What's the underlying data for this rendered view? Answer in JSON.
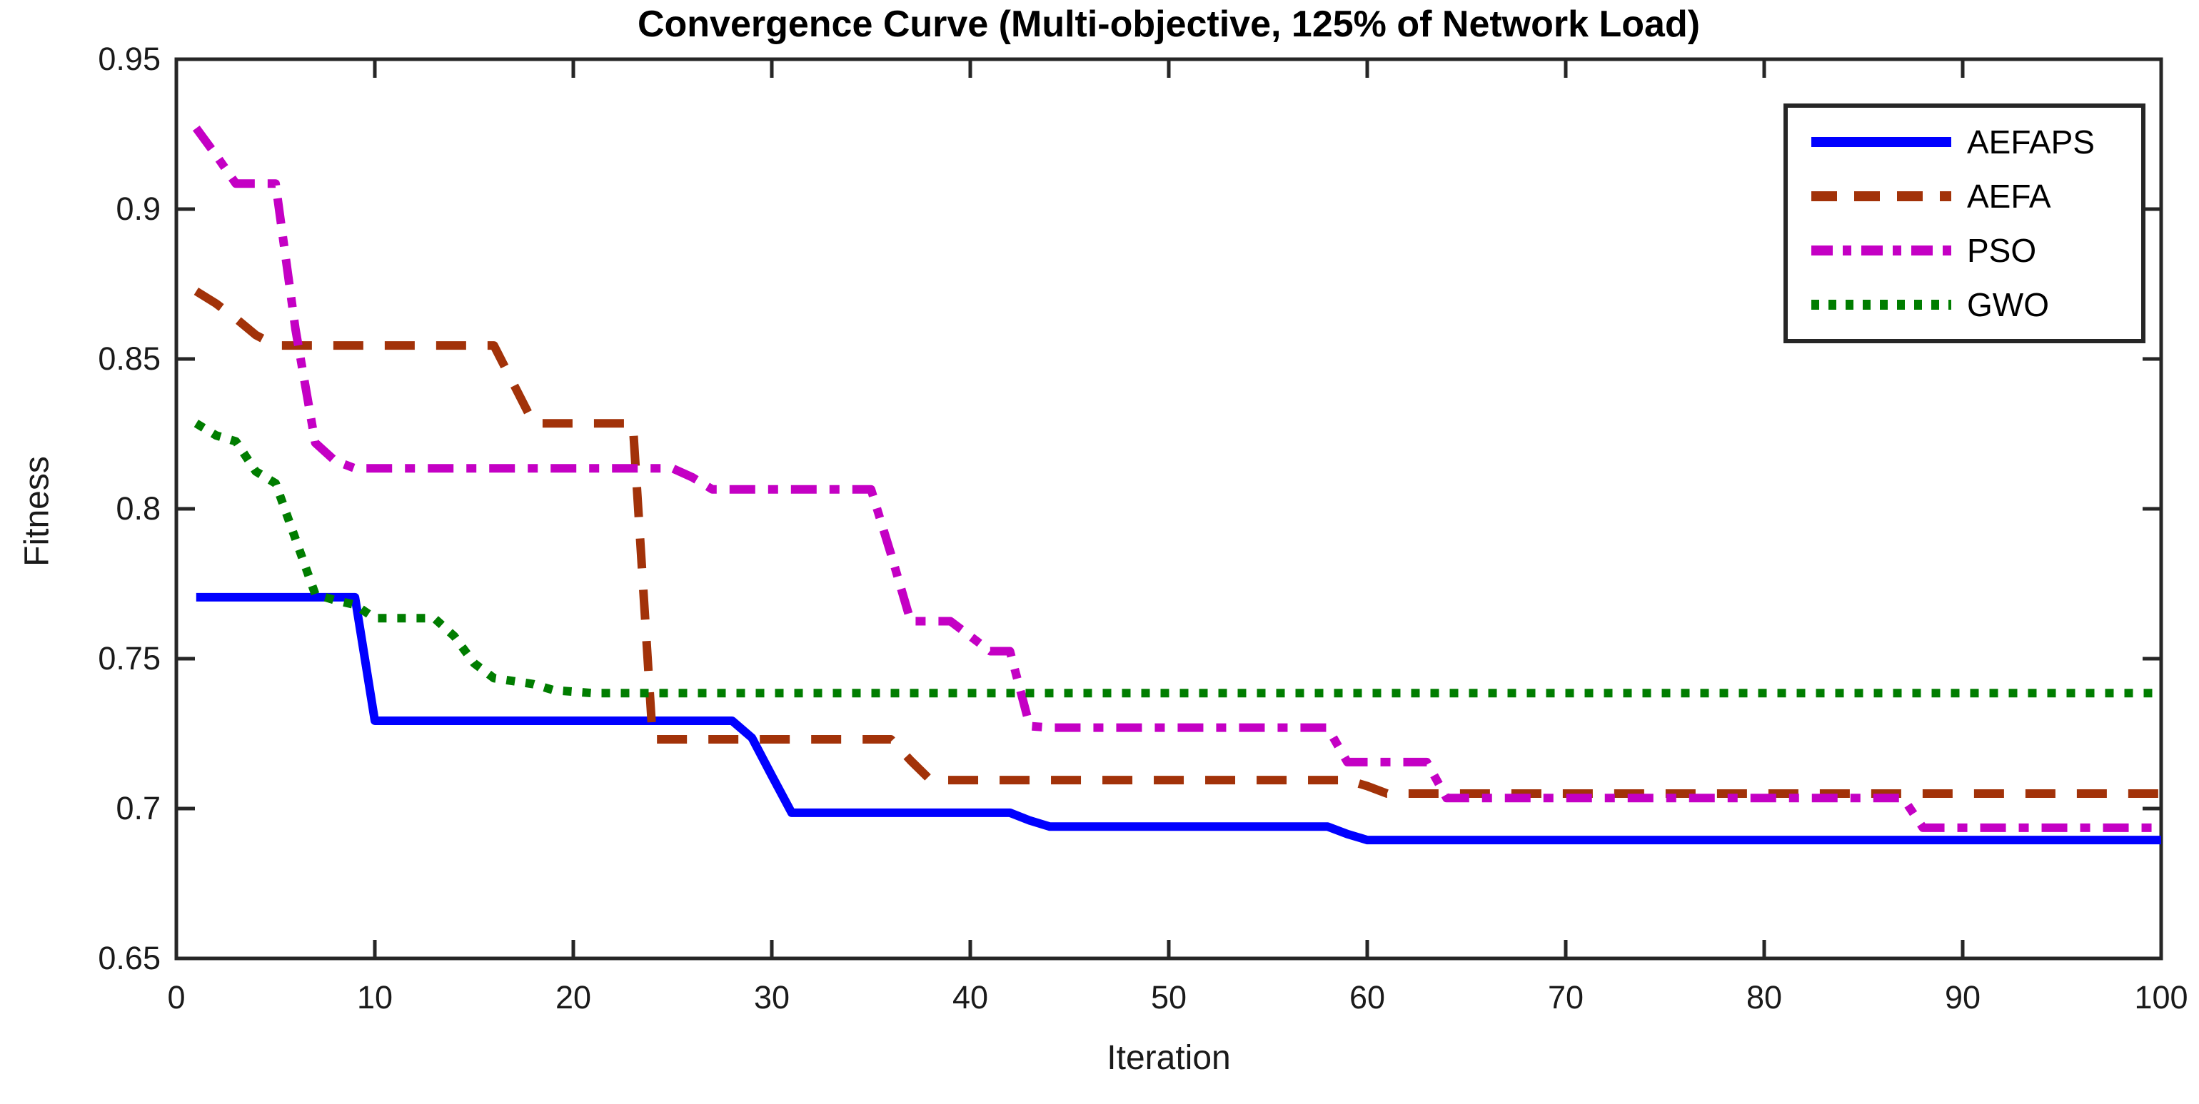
{
  "chart_data": {
    "type": "line",
    "title": "Convergence Curve (Multi-objective, 125% of Network Load)",
    "xlabel": "Iteration",
    "ylabel": "Fitness",
    "xlim": [
      0,
      100
    ],
    "ylim": [
      0.65,
      0.95
    ],
    "x_ticks": [
      0,
      10,
      20,
      30,
      40,
      50,
      60,
      70,
      80,
      90,
      100
    ],
    "x_tick_labels": [
      "0",
      "10",
      "20",
      "30",
      "40",
      "50",
      "60",
      "70",
      "80",
      "90",
      "100"
    ],
    "y_ticks": [
      0.65,
      0.7,
      0.75,
      0.8,
      0.85,
      0.9,
      0.95
    ],
    "y_tick_labels": [
      "0.65",
      "0.7",
      "0.75",
      "0.8",
      "0.85",
      "0.9",
      "0.95"
    ],
    "grid": false,
    "legend_position": "northeast",
    "axis_color": "#262626",
    "background_color": "#FFFFFF",
    "x_start": 1,
    "x_step": 1,
    "series": [
      {
        "name": "AEFAPS",
        "color": "#0000FF",
        "style": "solid",
        "values": [
          0.7705,
          0.7705,
          0.7705,
          0.7705,
          0.7705,
          0.7705,
          0.7705,
          0.7705,
          0.7705,
          0.7293,
          0.7293,
          0.7293,
          0.7293,
          0.7293,
          0.7293,
          0.7293,
          0.7293,
          0.7293,
          0.7293,
          0.7293,
          0.7293,
          0.7293,
          0.7293,
          0.7293,
          0.7293,
          0.7293,
          0.7293,
          0.7293,
          0.7236,
          0.711,
          0.6986,
          0.6986,
          0.6986,
          0.6986,
          0.6986,
          0.6986,
          0.6986,
          0.6986,
          0.6986,
          0.6986,
          0.6986,
          0.6986,
          0.696,
          0.694,
          0.694,
          0.694,
          0.694,
          0.694,
          0.694,
          0.694,
          0.694,
          0.694,
          0.694,
          0.694,
          0.694,
          0.694,
          0.694,
          0.694,
          0.6915,
          0.6895,
          0.6895,
          0.6895,
          0.6895,
          0.6895,
          0.6895,
          0.6895,
          0.6895,
          0.6895,
          0.6895,
          0.6895,
          0.6895,
          0.6895,
          0.6895,
          0.6895,
          0.6895,
          0.6895,
          0.6895,
          0.6895,
          0.6895,
          0.6895,
          0.6895,
          0.6895,
          0.6895,
          0.6895,
          0.6895,
          0.6895,
          0.6895,
          0.6895,
          0.6895,
          0.6895,
          0.6895,
          0.6895,
          0.6895,
          0.6895,
          0.6895,
          0.6895,
          0.6895,
          0.6895,
          0.6895,
          0.6895
        ]
      },
      {
        "name": "AEFA",
        "color": "#A23209",
        "style": "dashed",
        "values": [
          0.8726,
          0.8685,
          0.8635,
          0.858,
          0.8545,
          0.8545,
          0.8545,
          0.8545,
          0.8545,
          0.8545,
          0.8545,
          0.8545,
          0.8545,
          0.8545,
          0.8545,
          0.8545,
          0.8415,
          0.8285,
          0.8285,
          0.8285,
          0.8285,
          0.8285,
          0.8285,
          0.7231,
          0.7231,
          0.7231,
          0.7231,
          0.7231,
          0.7231,
          0.7231,
          0.7231,
          0.7231,
          0.7231,
          0.7231,
          0.7231,
          0.7231,
          0.716,
          0.7095,
          0.7095,
          0.7095,
          0.7095,
          0.7095,
          0.7095,
          0.7095,
          0.7095,
          0.7095,
          0.7095,
          0.7095,
          0.7095,
          0.7095,
          0.7095,
          0.7095,
          0.7095,
          0.7095,
          0.7095,
          0.7095,
          0.7095,
          0.7095,
          0.7095,
          0.7075,
          0.705,
          0.705,
          0.705,
          0.705,
          0.705,
          0.705,
          0.705,
          0.705,
          0.705,
          0.705,
          0.705,
          0.705,
          0.705,
          0.705,
          0.705,
          0.705,
          0.705,
          0.705,
          0.705,
          0.705,
          0.705,
          0.705,
          0.705,
          0.705,
          0.705,
          0.705,
          0.705,
          0.705,
          0.705,
          0.705,
          0.705,
          0.705,
          0.705,
          0.705,
          0.705,
          0.705,
          0.705,
          0.705,
          0.705,
          0.705
        ]
      },
      {
        "name": "PSO",
        "color": "#C400C4",
        "style": "dashdot",
        "values": [
          0.927,
          0.918,
          0.9085,
          0.9085,
          0.9085,
          0.86,
          0.822,
          0.816,
          0.8135,
          0.8135,
          0.8135,
          0.8135,
          0.8135,
          0.8135,
          0.8135,
          0.8135,
          0.8135,
          0.8135,
          0.8135,
          0.8135,
          0.8135,
          0.8135,
          0.8135,
          0.8135,
          0.8135,
          0.8105,
          0.8065,
          0.8065,
          0.8065,
          0.8065,
          0.8065,
          0.8065,
          0.8065,
          0.8065,
          0.8065,
          0.785,
          0.7625,
          0.7625,
          0.7625,
          0.7575,
          0.7525,
          0.7525,
          0.7275,
          0.727,
          0.727,
          0.727,
          0.727,
          0.727,
          0.727,
          0.727,
          0.727,
          0.727,
          0.727,
          0.727,
          0.727,
          0.727,
          0.727,
          0.727,
          0.7155,
          0.7155,
          0.7155,
          0.7155,
          0.7155,
          0.7035,
          0.7035,
          0.7035,
          0.7035,
          0.7035,
          0.7035,
          0.7035,
          0.7035,
          0.7035,
          0.7035,
          0.7035,
          0.7035,
          0.7035,
          0.7035,
          0.7035,
          0.7035,
          0.7035,
          0.7035,
          0.7035,
          0.7035,
          0.7035,
          0.7035,
          0.7035,
          0.7035,
          0.6936,
          0.6936,
          0.6936,
          0.6936,
          0.6936,
          0.6936,
          0.6936,
          0.6936,
          0.6936,
          0.6936,
          0.6936,
          0.6936,
          0.6936
        ]
      },
      {
        "name": "GWO",
        "color": "#007D00",
        "style": "dotted",
        "values": [
          0.8285,
          0.8245,
          0.8225,
          0.8125,
          0.8085,
          0.79,
          0.7715,
          0.7695,
          0.768,
          0.7635,
          0.7635,
          0.7635,
          0.7635,
          0.7575,
          0.7485,
          0.7435,
          0.7425,
          0.7415,
          0.7395,
          0.739,
          0.7385,
          0.7385,
          0.7385,
          0.7385,
          0.7385,
          0.7385,
          0.7385,
          0.7385,
          0.7385,
          0.7385,
          0.7385,
          0.7385,
          0.7385,
          0.7385,
          0.7385,
          0.7385,
          0.7385,
          0.7385,
          0.7385,
          0.7385,
          0.7385,
          0.7385,
          0.7385,
          0.7385,
          0.7385,
          0.7385,
          0.7385,
          0.7385,
          0.7385,
          0.7385,
          0.7385,
          0.7385,
          0.7385,
          0.7385,
          0.7385,
          0.7385,
          0.7385,
          0.7385,
          0.7385,
          0.7385,
          0.7385,
          0.7385,
          0.7385,
          0.7385,
          0.7385,
          0.7385,
          0.7385,
          0.7385,
          0.7385,
          0.7385,
          0.7385,
          0.7385,
          0.7385,
          0.7385,
          0.7385,
          0.7385,
          0.7385,
          0.7385,
          0.7385,
          0.7385,
          0.7385,
          0.7385,
          0.7385,
          0.7385,
          0.7385,
          0.7385,
          0.7385,
          0.7385,
          0.7385,
          0.7385,
          0.7385,
          0.7385,
          0.7385,
          0.7385,
          0.7385,
          0.7385,
          0.7385,
          0.7385,
          0.7385,
          0.7385
        ]
      }
    ]
  }
}
